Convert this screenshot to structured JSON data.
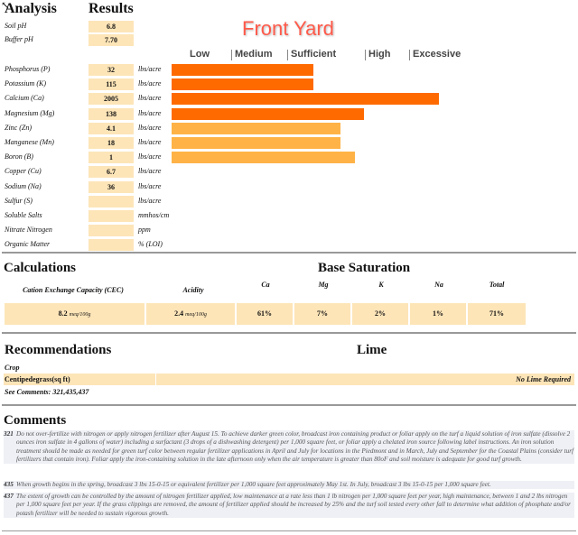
{
  "header": {
    "analysis_heading": "Analysis",
    "results_heading": "Results",
    "title": "Front Yard",
    "levels": [
      "Low",
      "Medium",
      "Sufficient",
      "High",
      "Excessive"
    ]
  },
  "ph": [
    {
      "label": "Soil pH",
      "value": "6.8"
    },
    {
      "label": "Buffer pH",
      "value": "7.70"
    }
  ],
  "nutrients": [
    {
      "label": "Phosphorus (P)",
      "value": "32",
      "unit": "lbs/acre",
      "level": 0.418,
      "color": "#ff6a00"
    },
    {
      "label": "Potassium (K)",
      "value": "115",
      "unit": "lbs/acre",
      "level": 0.418,
      "color": "#ff6a00"
    },
    {
      "label": "Calcium (Ca)",
      "value": "2005",
      "unit": "lbs/acre",
      "level": 0.788,
      "color": "#ff6a00"
    },
    {
      "label": "Magnesium (Mg)",
      "value": "138",
      "unit": "lbs/acre",
      "level": 0.566,
      "color": "#ff6a00"
    },
    {
      "label": "Zinc (Zn)",
      "value": "4.1",
      "unit": "lbs/acre",
      "level": 0.497,
      "color": "#ffb347"
    },
    {
      "label": "Manganese (Mn)",
      "value": "18",
      "unit": "lbs/acre",
      "level": 0.497,
      "color": "#ffb347"
    },
    {
      "label": "Boron (B)",
      "value": "1",
      "unit": "lbs/acre",
      "level": 0.54,
      "color": "#ffb347"
    },
    {
      "label": "Copper (Cu)",
      "value": "6.7",
      "unit": "lbs/acre",
      "level": 0,
      "color": "#ffb347"
    },
    {
      "label": "Sodium (Na)",
      "value": "36",
      "unit": "lbs/acre",
      "level": 0,
      "color": "#ffb347"
    },
    {
      "label": "Sulfur (S)",
      "value": "",
      "unit": "lbs/acre",
      "level": 0,
      "color": "#ffb347"
    },
    {
      "label": "Soluble Salts",
      "value": "",
      "unit": "mmhos/cm",
      "level": 0,
      "color": "#ffb347"
    },
    {
      "label": "Nitrate Nitrogen",
      "value": "",
      "unit": "ppm",
      "level": 0,
      "color": "#ffb347"
    },
    {
      "label": "Organic Matter",
      "value": "",
      "unit": "% (LOI)",
      "level": 0,
      "color": "#ffb347"
    }
  ],
  "calculations": {
    "heading": "Calculations",
    "base_heading": "Base Saturation",
    "cec_label": "Cation Exchange Capacity (CEC)",
    "cec_value": "8.2",
    "cec_unit": "meq/100g",
    "acidity_label": "Acidity",
    "acidity_value": "2.4",
    "acidity_unit": "meq/100g",
    "ca_label": "Ca",
    "ca_value": "61%",
    "mg_label": "Mg",
    "mg_value": "7%",
    "k_label": "K",
    "k_value": "2%",
    "na_label": "Na",
    "na_value": "1%",
    "total_label": "Total",
    "total_value": "71%"
  },
  "recommendations": {
    "heading": "Recommendations",
    "lime_heading": "Lime",
    "crop_label": "Crop",
    "crop_value": "Centipedegrass(sq ft)",
    "lime_value": "No Lime Required",
    "see_comments": "See Comments: 321,435,437"
  },
  "comments": {
    "heading": "Comments",
    "items": [
      {
        "code": "321",
        "text": "Do not over-fertilize with nitrogen or apply nitrogen fertilizer after August 15. To achieve darker green color, broadcast iron containing product or foliar apply on the turf a liquid solution of iron sulfate (dissolve 2 ounces iron sulfate in 4 gallons of water) including a surfactant (3 drops of a dishwashing detergent) per 1,000 square feet, or foliar apply a chelated iron source following label instructions. An iron solution treatment should be made as needed for green turf color between regular fertilizer applications in April and July for locations in the Piedmont and in March, July and September for the Coastal Plains (consider turf fertilizers that contain iron). Foliar apply the iron-containing solution in the late afternoon only when the air temperature is greater than 80oF and soil moisture is adequate for good turf growth."
      },
      {
        "code": "435",
        "text": "When growth begins in the spring, broadcast 3 lbs 15-0-15 or equivalent fertilizer per 1,000 square feet approximately May 1st. In July, broadcast 3 lbs 15-0-15 per 1,000 square feet."
      },
      {
        "code": "437",
        "text": "The extent of growth can be controlled by the amount of nitrogen fertilizer applied, low maintenance at a rate less than 1 lb nitrogen per 1,000 square feet per year, high maintenance, between 1 and 2 lbs nitrogen per 1,000 square feet per year. If the grass clippings are removed, the amount of fertilizer applied should be increased by 25% and the turf soil tested every other fall to determine what addition of phosphate and/or potash fertilizer will be needed to sustain vigorous growth."
      }
    ]
  }
}
